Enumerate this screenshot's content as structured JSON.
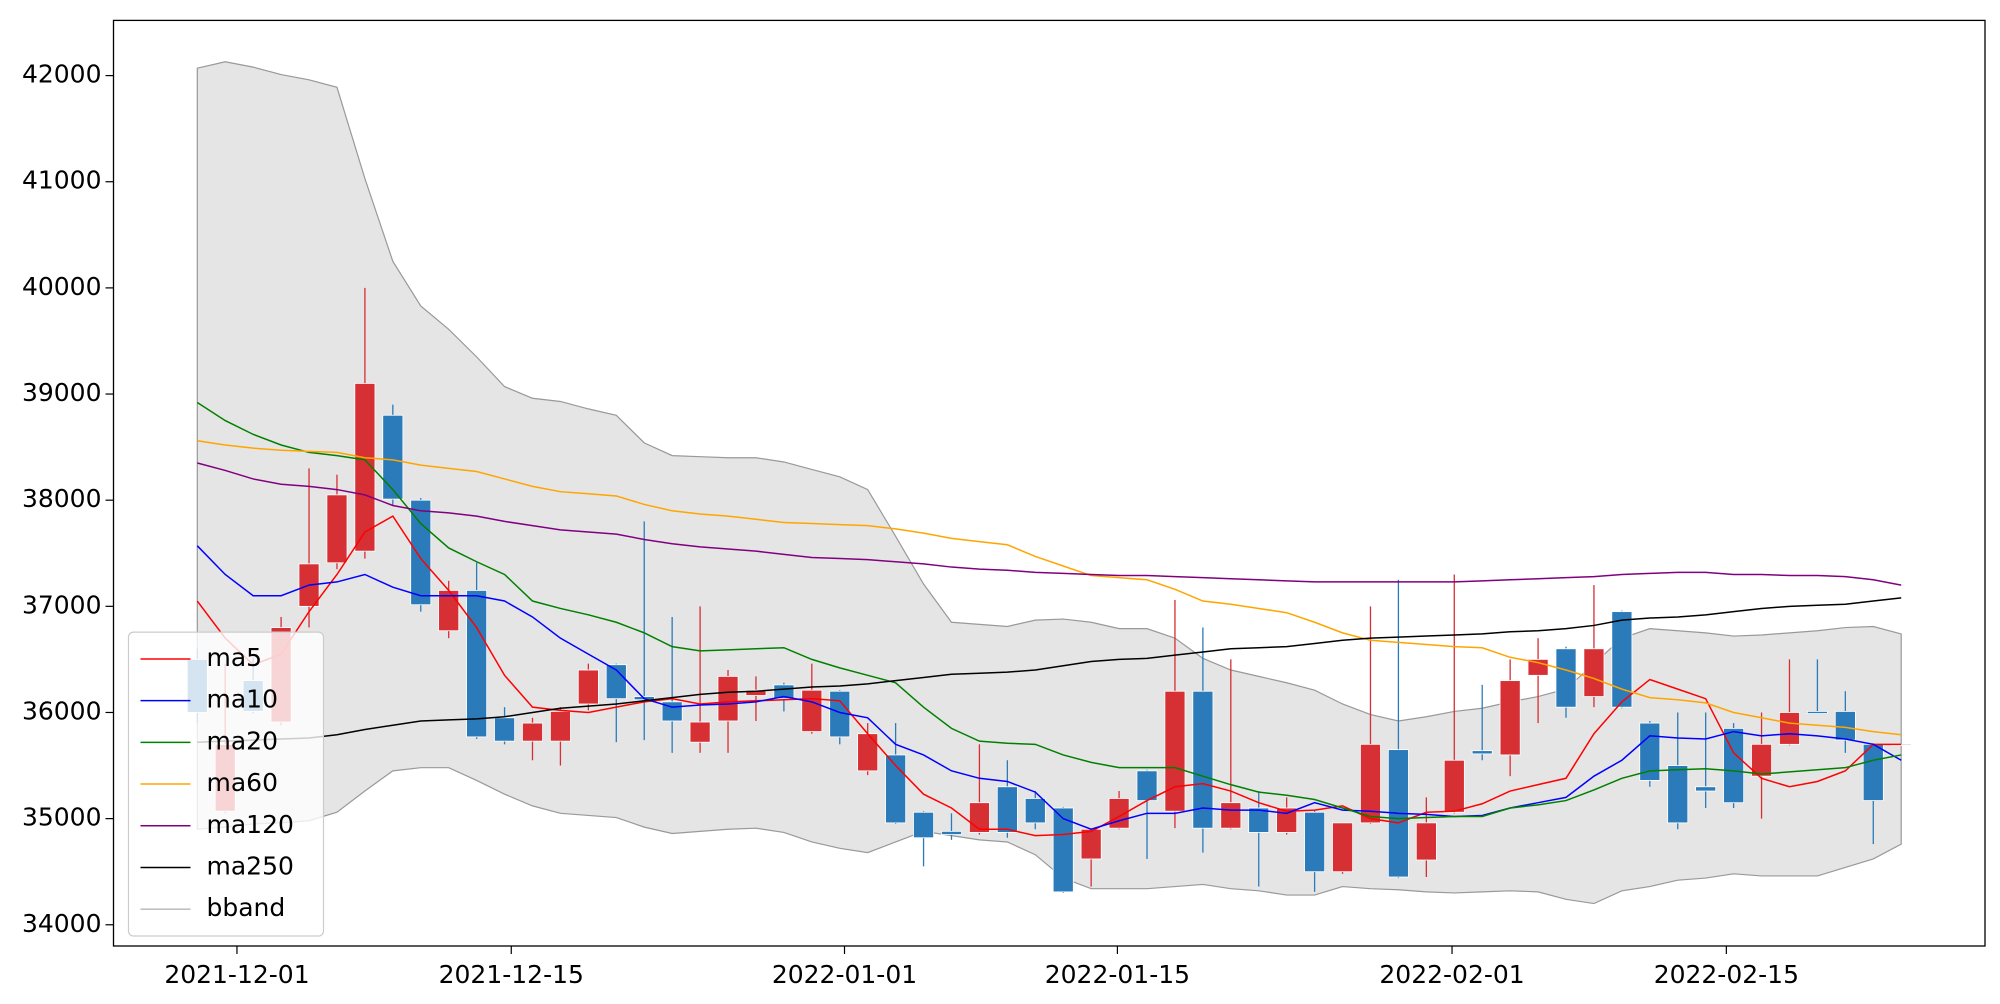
{
  "chart_data": {
    "type": "candlestick",
    "xlim": [
      -3,
      64
    ],
    "xticks": [
      {
        "value": 1.42,
        "label": "2021-12-01"
      },
      {
        "value": 11.24,
        "label": "2021-12-15"
      },
      {
        "value": 23.17,
        "label": "2022-01-01"
      },
      {
        "value": 32.94,
        "label": "2022-01-15"
      },
      {
        "value": 44.92,
        "label": "2022-02-01"
      },
      {
        "value": 54.74,
        "label": "2022-02-15"
      }
    ],
    "ylim": [
      33800,
      42520
    ],
    "yticks": [
      34000,
      35000,
      36000,
      37000,
      38000,
      39000,
      40000,
      41000,
      42000
    ],
    "up_color": "#d62f34",
    "down_color": "#2b7bba",
    "legend": "lower left",
    "open": [
      36500,
      35070,
      36300,
      35910,
      37000,
      37410,
      37520,
      38800,
      38000,
      36770,
      37150,
      35950,
      35730,
      35730,
      36080,
      36450,
      36150,
      36100,
      35720,
      35920,
      36160,
      36260,
      35820,
      36200,
      35450,
      35600,
      35060,
      34880,
      34870,
      35300,
      35190,
      35100,
      34620,
      34910,
      35450,
      35070,
      36200,
      34910,
      35100,
      34870,
      35060,
      34500,
      34960,
      35650,
      34610,
      35060,
      35640,
      35600,
      36350,
      36600,
      36150,
      36950,
      35900,
      35500,
      35300,
      35850,
      35400,
      35700,
      36010,
      36010,
      35700,
      35700
    ],
    "high": [
      36600,
      36460,
      36520,
      36900,
      38300,
      38240,
      40000,
      38900,
      38020,
      37240,
      37410,
      36050,
      35950,
      36050,
      36460,
      36460,
      37800,
      36900,
      37000,
      36400,
      36340,
      36280,
      36460,
      36210,
      35900,
      35900,
      35070,
      35050,
      35700,
      35550,
      35260,
      35110,
      34900,
      35260,
      35460,
      37060,
      36800,
      36500,
      35260,
      35200,
      35080,
      34960,
      37000,
      37250,
      35200,
      37300,
      36260,
      36500,
      36700,
      36620,
      37200,
      36960,
      35920,
      36000,
      36000,
      35900,
      36000,
      36500,
      36500,
      36200,
      35710,
      35700
    ],
    "low": [
      35900,
      35050,
      35990,
      35880,
      36800,
      37350,
      37450,
      37950,
      36950,
      36700,
      35750,
      35700,
      35550,
      35500,
      36020,
      35720,
      35740,
      35620,
      35620,
      35620,
      35920,
      36010,
      35800,
      35700,
      35410,
      34950,
      34550,
      34800,
      34850,
      34820,
      34900,
      34300,
      34360,
      34900,
      34620,
      34910,
      34680,
      34900,
      34360,
      34850,
      34310,
      34480,
      34950,
      34440,
      34450,
      35050,
      35550,
      35400,
      35900,
      35950,
      36050,
      36040,
      35300,
      34900,
      35100,
      35100,
      35000,
      35690,
      35990,
      35620,
      34760,
      35700
    ],
    "close": [
      36000,
      35700,
      36010,
      36800,
      37400,
      38050,
      39100,
      38010,
      37015,
      37150,
      35770,
      35730,
      35900,
      36010,
      36400,
      36130,
      36120,
      35920,
      35910,
      36340,
      36210,
      36130,
      36210,
      35770,
      35800,
      34960,
      34820,
      34850,
      35150,
      34870,
      34960,
      34310,
      34900,
      35190,
      35170,
      36200,
      34910,
      35150,
      34870,
      35100,
      34500,
      34960,
      35700,
      34450,
      34960,
      35550,
      35610,
      36300,
      36500,
      36050,
      36600,
      36050,
      35360,
      34960,
      35260,
      35150,
      35700,
      36000,
      35990,
      35740,
      35170,
      35700
    ],
    "series": [
      {
        "name": "ma5",
        "color": "#ff0000",
        "values": [
          37050,
          36700,
          36450,
          36550,
          36950,
          37300,
          37700,
          37850,
          37450,
          37150,
          36800,
          36350,
          36050,
          36020,
          36000,
          36050,
          36100,
          36130,
          36080,
          36100,
          36110,
          36120,
          36130,
          36110,
          35800,
          35500,
          35230,
          35100,
          34900,
          34900,
          34840,
          34850,
          34880,
          35020,
          35170,
          35300,
          35330,
          35260,
          35150,
          35070,
          35080,
          35120,
          35000,
          34960,
          35060,
          35070,
          35140,
          35260,
          35320,
          35380,
          35800,
          36100,
          36310,
          36220,
          36130,
          35620,
          35380,
          35300,
          35350,
          35450,
          35700,
          35700
        ]
      },
      {
        "name": "ma10",
        "color": "#0000ff",
        "values": [
          37570,
          37300,
          37100,
          37100,
          37200,
          37230,
          37300,
          37180,
          37100,
          37100,
          37100,
          37050,
          36900,
          36700,
          36550,
          36400,
          36130,
          36050,
          36070,
          36080,
          36100,
          36150,
          36100,
          36000,
          35950,
          35700,
          35600,
          35450,
          35380,
          35350,
          35250,
          35000,
          34900,
          34980,
          35050,
          35050,
          35100,
          35080,
          35080,
          35050,
          35150,
          35080,
          35070,
          35050,
          35040,
          35020,
          35030,
          35100,
          35150,
          35200,
          35400,
          35550,
          35780,
          35760,
          35750,
          35820,
          35780,
          35800,
          35780,
          35750,
          35700,
          35550
        ]
      },
      {
        "name": "ma20",
        "color": "#008000",
        "values": [
          38920,
          38750,
          38620,
          38520,
          38450,
          38420,
          38380,
          38100,
          37780,
          37550,
          37420,
          37300,
          37050,
          36980,
          36920,
          36850,
          36750,
          36620,
          36580,
          36590,
          36600,
          36610,
          36500,
          36420,
          36350,
          36280,
          36050,
          35850,
          35730,
          35710,
          35700,
          35600,
          35530,
          35480,
          35480,
          35480,
          35400,
          35320,
          35250,
          35220,
          35180,
          35100,
          35020,
          35000,
          35010,
          35020,
          35020,
          35100,
          35130,
          35170,
          35270,
          35380,
          35450,
          35460,
          35470,
          35450,
          35420,
          35440,
          35460,
          35480,
          35550,
          35600
        ]
      },
      {
        "name": "ma60",
        "color": "#ffa500",
        "values": [
          38560,
          38520,
          38490,
          38470,
          38460,
          38450,
          38400,
          38380,
          38330,
          38300,
          38270,
          38200,
          38130,
          38080,
          38060,
          38040,
          37960,
          37900,
          37870,
          37850,
          37820,
          37790,
          37780,
          37770,
          37760,
          37730,
          37690,
          37640,
          37610,
          37580,
          37470,
          37380,
          37290,
          37270,
          37250,
          37160,
          37050,
          37020,
          36980,
          36940,
          36850,
          36750,
          36680,
          36660,
          36640,
          36620,
          36610,
          36520,
          36470,
          36400,
          36320,
          36220,
          36140,
          36120,
          36090,
          36000,
          35950,
          35900,
          35880,
          35860,
          35820,
          35790
        ]
      },
      {
        "name": "ma120",
        "color": "#800080",
        "values": [
          38350,
          38280,
          38200,
          38150,
          38130,
          38100,
          38050,
          37950,
          37900,
          37880,
          37850,
          37800,
          37760,
          37720,
          37700,
          37680,
          37630,
          37590,
          37560,
          37540,
          37520,
          37490,
          37460,
          37450,
          37440,
          37420,
          37400,
          37370,
          37350,
          37340,
          37320,
          37310,
          37300,
          37290,
          37290,
          37280,
          37270,
          37260,
          37250,
          37240,
          37230,
          37230,
          37230,
          37230,
          37230,
          37230,
          37240,
          37250,
          37260,
          37270,
          37280,
          37300,
          37310,
          37320,
          37320,
          37300,
          37300,
          37290,
          37290,
          37280,
          37250,
          37200
        ]
      },
      {
        "name": "ma250",
        "color": "#000000",
        "values": [
          35720,
          35730,
          35740,
          35750,
          35760,
          35790,
          35840,
          35880,
          35920,
          35930,
          35940,
          35960,
          36000,
          36040,
          36060,
          36080,
          36110,
          36140,
          36170,
          36190,
          36200,
          36220,
          36240,
          36250,
          36270,
          36300,
          36330,
          36360,
          36370,
          36380,
          36400,
          36440,
          36480,
          36500,
          36510,
          36540,
          36570,
          36600,
          36610,
          36620,
          36650,
          36680,
          36700,
          36710,
          36720,
          36730,
          36740,
          36760,
          36770,
          36790,
          36820,
          36870,
          36890,
          36900,
          36920,
          36950,
          36980,
          37000,
          37010,
          37020,
          37050,
          37080
        ]
      }
    ],
    "band": {
      "name": "bband",
      "color": "#999999",
      "fill": "#e5e5e5",
      "upper": [
        42070,
        42130,
        42080,
        42010,
        41960,
        41890,
        41030,
        40250,
        39830,
        39610,
        39350,
        39070,
        38960,
        38930,
        38860,
        38800,
        38540,
        38420,
        38410,
        38400,
        38400,
        38360,
        38290,
        38220,
        38100,
        37660,
        37210,
        36850,
        36830,
        36810,
        36870,
        36880,
        36850,
        36790,
        36790,
        36700,
        36510,
        36400,
        36340,
        36280,
        36210,
        36080,
        35980,
        35920,
        35960,
        36010,
        36040,
        36100,
        36150,
        36220,
        36460,
        36700,
        36790,
        36770,
        36750,
        36720,
        36730,
        36750,
        36770,
        36800,
        36810,
        36740
      ],
      "lower": [
        34900,
        34920,
        34950,
        34960,
        34980,
        35060,
        35260,
        35450,
        35480,
        35480,
        35360,
        35230,
        35120,
        35050,
        35030,
        35010,
        34920,
        34860,
        34880,
        34900,
        34910,
        34870,
        34780,
        34720,
        34680,
        34780,
        34880,
        34840,
        34800,
        34780,
        34660,
        34440,
        34340,
        34340,
        34340,
        34360,
        34380,
        34340,
        34320,
        34280,
        34280,
        34360,
        34340,
        34330,
        34310,
        34300,
        34310,
        34320,
        34310,
        34240,
        34200,
        34320,
        34360,
        34420,
        34440,
        34480,
        34460,
        34460,
        34460,
        34540,
        34620,
        34760
      ]
    }
  }
}
